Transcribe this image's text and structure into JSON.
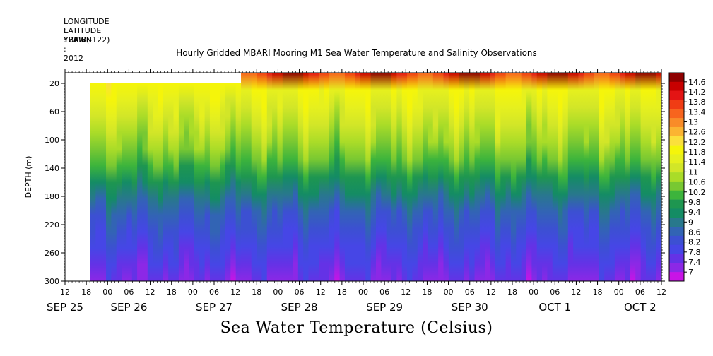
{
  "meta": {
    "longitude": "LONGITUDE : 122W(-122)",
    "latitude": "LATITUDE : 36.8N",
    "year": "YEAR : 2012"
  },
  "title": "Hourly Gridded MBARI Mooring M1 Sea Water Temperature and Salinity Observations",
  "footer": "Sea Water Temperature (Celsius)",
  "chart_data": {
    "type": "heatmap",
    "title": "Hourly Gridded MBARI Mooring M1 Sea Water Temperature and Salinity Observations",
    "ylabel": "DEPTH (m)",
    "xlabel": "",
    "colorbar_label": "Sea Water Temperature (Celsius)",
    "y_axis": {
      "range": [
        5,
        300
      ],
      "inverted": true,
      "tick_values": [
        20,
        60,
        100,
        140,
        180,
        220,
        260,
        300
      ]
    },
    "x_axis": {
      "hour_ticks": [
        "12",
        "18",
        "00",
        "06",
        "12",
        "18",
        "00",
        "06",
        "12",
        "18",
        "00",
        "06",
        "12",
        "18",
        "00",
        "06",
        "12",
        "18",
        "00",
        "06",
        "12",
        "18",
        "00",
        "06",
        "12",
        "18",
        "00",
        "06",
        "12"
      ],
      "date_labels": [
        {
          "label": "SEP 25",
          "tick_index": 0
        },
        {
          "label": "SEP 26",
          "tick_index": 3
        },
        {
          "label": "SEP 27",
          "tick_index": 7
        },
        {
          "label": "SEP 28",
          "tick_index": 11
        },
        {
          "label": "SEP 29",
          "tick_index": 15
        },
        {
          "label": "SEP 30",
          "tick_index": 19
        },
        {
          "label": "OCT  1",
          "tick_index": 23
        },
        {
          "label": "OCT  2",
          "tick_index": 27
        }
      ]
    },
    "colorbar": {
      "levels": [
        "14.6",
        "14.2",
        "13.8",
        "13.4",
        "13",
        "12.6",
        "12.2",
        "11.8",
        "11.4",
        "11",
        "10.6",
        "10.2",
        "9.8",
        "9.4",
        "9",
        "8.6",
        "8.2",
        "7.8",
        "7.4",
        "7"
      ],
      "colors": [
        "#8e0000",
        "#c80000",
        "#e31414",
        "#f03c14",
        "#f7641e",
        "#f98c28",
        "#fbb432",
        "#fbe03c",
        "#f5f50a",
        "#e6f01e",
        "#d2e628",
        "#aadc28",
        "#78c832",
        "#3cb43c",
        "#1e9650",
        "#148c64",
        "#28788c",
        "#3264b4",
        "#3c50d2",
        "#4646e6",
        "#6432e6",
        "#8c28e6",
        "#c814e6"
      ]
    },
    "notes_data": {
      "time_start": "2012-09-25T12:00",
      "time_end": "2012-10-02T12:00",
      "missing_data_until": "2012-09-26T00:00 (approx.)"
    }
  }
}
